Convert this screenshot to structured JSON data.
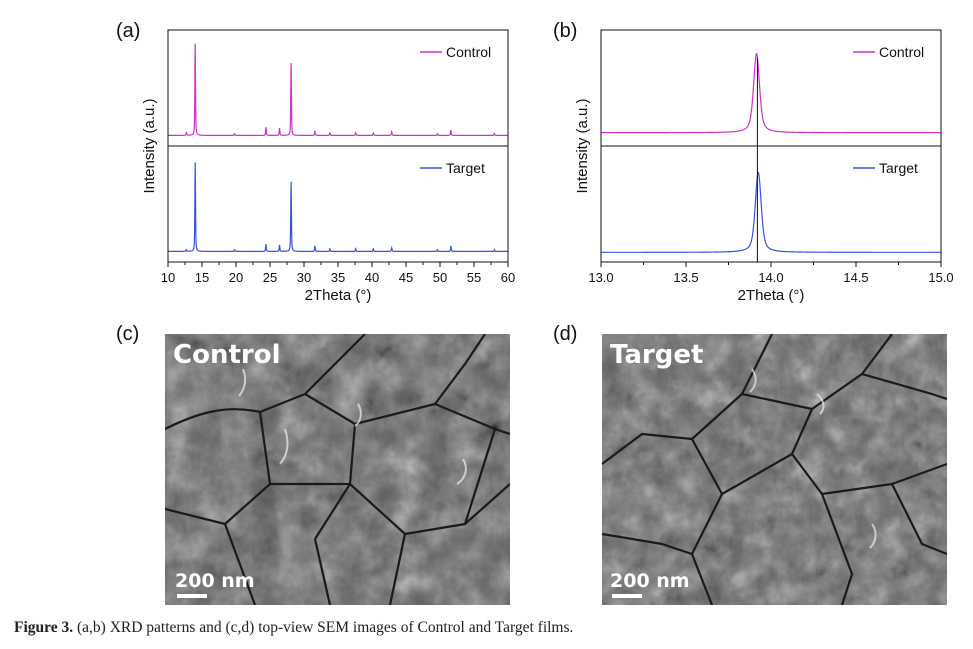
{
  "panels": {
    "a": "(a)",
    "b": "(b)",
    "c": "(c)",
    "d": "(d)"
  },
  "chart_data": [
    {
      "id": "a",
      "type": "line",
      "xlabel": "2Theta (°)",
      "ylabel": "Intensity (a.u.)",
      "xlim": [
        10,
        60
      ],
      "xticks": [
        10,
        15,
        20,
        25,
        30,
        35,
        40,
        45,
        50,
        55,
        60
      ],
      "tick_format": "0",
      "stacked": true,
      "legend_position": "top-right",
      "series": [
        {
          "name": "Control",
          "color": "#cc33cc",
          "baseline": 0.05,
          "peaks": [
            {
              "x": 12.7,
              "h": 0.03
            },
            {
              "x": 14.0,
              "h": 1.0
            },
            {
              "x": 19.8,
              "h": 0.02
            },
            {
              "x": 24.4,
              "h": 0.09
            },
            {
              "x": 26.4,
              "h": 0.08
            },
            {
              "x": 28.1,
              "h": 0.8
            },
            {
              "x": 31.6,
              "h": 0.05
            },
            {
              "x": 33.8,
              "h": 0.03
            },
            {
              "x": 37.6,
              "h": 0.03
            },
            {
              "x": 40.2,
              "h": 0.03
            },
            {
              "x": 42.9,
              "h": 0.04
            },
            {
              "x": 49.6,
              "h": 0.02
            },
            {
              "x": 51.6,
              "h": 0.06
            },
            {
              "x": 58.0,
              "h": 0.02
            }
          ]
        },
        {
          "name": "Target",
          "color": "#3355dd",
          "baseline": 0.05,
          "peaks": [
            {
              "x": 12.7,
              "h": 0.02
            },
            {
              "x": 14.0,
              "h": 0.97
            },
            {
              "x": 19.8,
              "h": 0.02
            },
            {
              "x": 24.4,
              "h": 0.08
            },
            {
              "x": 26.4,
              "h": 0.07
            },
            {
              "x": 28.1,
              "h": 0.77
            },
            {
              "x": 31.6,
              "h": 0.06
            },
            {
              "x": 33.8,
              "h": 0.03
            },
            {
              "x": 37.6,
              "h": 0.03
            },
            {
              "x": 40.2,
              "h": 0.03
            },
            {
              "x": 42.9,
              "h": 0.04
            },
            {
              "x": 49.6,
              "h": 0.02
            },
            {
              "x": 51.6,
              "h": 0.06
            },
            {
              "x": 58.0,
              "h": 0.02
            }
          ]
        }
      ]
    },
    {
      "id": "b",
      "type": "line",
      "xlabel": "2Theta (°)",
      "ylabel": "Intensity (a.u.)",
      "xlim": [
        13.0,
        15.0
      ],
      "xticks": [
        13.0,
        13.5,
        14.0,
        14.5,
        15.0
      ],
      "tick_format": "1",
      "stacked": true,
      "legend_position": "top-right",
      "reference_line_x": 13.92,
      "series": [
        {
          "name": "Control",
          "color": "#cc33cc",
          "baseline": 0.08,
          "peaks": [
            {
              "x": 13.915,
              "h": 0.86
            }
          ]
        },
        {
          "name": "Target",
          "color": "#3355dd",
          "baseline": 0.04,
          "peaks": [
            {
              "x": 13.925,
              "h": 0.87
            }
          ]
        }
      ]
    }
  ],
  "sem_images": [
    {
      "id": "c",
      "label": "Control",
      "scale": "200 nm"
    },
    {
      "id": "d",
      "label": "Target",
      "scale": "200 nm"
    }
  ],
  "caption": {
    "lead": "Figure 3.",
    "text": " (a,b) XRD patterns and (c,d) top-view SEM images of Control and Target films."
  }
}
